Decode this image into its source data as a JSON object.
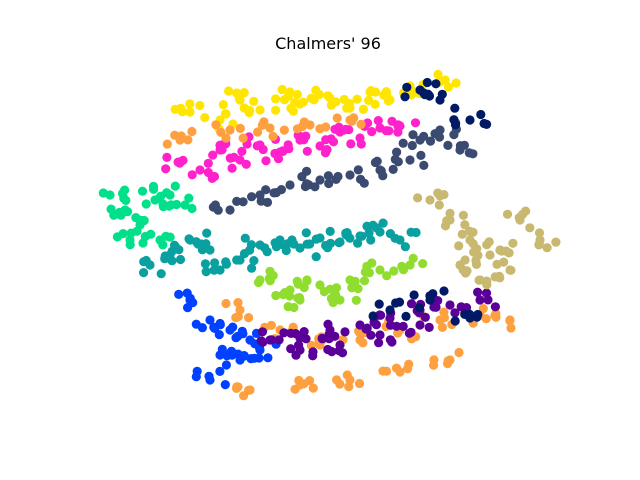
{
  "chart_data": {
    "type": "scatter",
    "title": "Chalmers' 96",
    "axes_visible": false,
    "grid": false,
    "legend": "none",
    "colors": {
      "pink_band": "#ff22cc",
      "yellow_band": "#ffe600",
      "orange_band": "#ffa040",
      "cyan_green": "#00e08a",
      "teal": "#0aa0a0",
      "blue": "#0040ff",
      "purple_band": "#5a0099",
      "slate": "#3a4a70",
      "khaki": "#c8b870",
      "lime": "#90dd30",
      "navy": "#001a66"
    },
    "series": [
      {
        "values": [
          [
            180,
            162
          ],
          [
            220,
            150
          ],
          [
            260,
            145
          ],
          [
            300,
            140
          ],
          [
            340,
            132
          ],
          [
            380,
            128
          ],
          [
            400,
            126
          ],
          [
            200,
            170
          ],
          [
            240,
            160
          ],
          [
            280,
            152
          ],
          [
            320,
            146
          ],
          [
            360,
            138
          ]
        ]
      },
      {
        "values": [
          [
            190,
            112
          ],
          [
            240,
            100
          ],
          [
            290,
            92
          ],
          [
            330,
            98
          ],
          [
            370,
            92
          ],
          [
            410,
            86
          ],
          [
            440,
            82
          ],
          [
            220,
            120
          ],
          [
            260,
            110
          ],
          [
            300,
            104
          ],
          [
            350,
            108
          ],
          [
            390,
            100
          ]
        ]
      },
      {
        "values": [
          [
            180,
            140
          ],
          [
            230,
            130
          ],
          [
            270,
            128
          ],
          [
            310,
            125
          ],
          [
            350,
            120
          ],
          [
            240,
            310
          ],
          [
            280,
            330
          ],
          [
            320,
            345
          ],
          [
            360,
            340
          ],
          [
            400,
            330
          ],
          [
            440,
            320
          ],
          [
            480,
            315
          ],
          [
            510,
            320
          ],
          [
            250,
            390
          ],
          [
            300,
            385
          ],
          [
            350,
            380
          ],
          [
            400,
            372
          ],
          [
            450,
            360
          ]
        ]
      },
      {
        "values": [
          [
            110,
            195
          ],
          [
            125,
            210
          ],
          [
            140,
            225
          ],
          [
            155,
            200
          ],
          [
            170,
            195
          ],
          [
            185,
            205
          ],
          [
            130,
            240
          ],
          [
            160,
            240
          ]
        ]
      },
      {
        "values": [
          [
            150,
            265
          ],
          [
            170,
            255
          ],
          [
            190,
            240
          ],
          [
            210,
            250
          ],
          [
            220,
            270
          ],
          [
            240,
            260
          ],
          [
            260,
            245
          ],
          [
            280,
            240
          ],
          [
            300,
            248
          ],
          [
            320,
            238
          ],
          [
            340,
            242
          ],
          [
            360,
            236
          ],
          [
            380,
            232
          ],
          [
            400,
            240
          ]
        ]
      },
      {
        "values": [
          [
            190,
            300
          ],
          [
            210,
            320
          ],
          [
            230,
            330
          ],
          [
            250,
            340
          ],
          [
            220,
            355
          ],
          [
            240,
            360
          ],
          [
            260,
            350
          ],
          [
            210,
            380
          ]
        ]
      },
      {
        "values": [
          [
            270,
            340
          ],
          [
            300,
            338
          ],
          [
            330,
            330
          ],
          [
            360,
            325
          ],
          [
            390,
            318
          ],
          [
            420,
            310
          ],
          [
            450,
            305
          ],
          [
            480,
            300
          ],
          [
            300,
            350
          ],
          [
            340,
            345
          ],
          [
            380,
            335
          ],
          [
            420,
            325
          ]
        ]
      },
      {
        "values": [
          [
            230,
            210
          ],
          [
            260,
            195
          ],
          [
            290,
            185
          ],
          [
            320,
            180
          ],
          [
            350,
            175
          ],
          [
            380,
            170
          ],
          [
            410,
            160
          ],
          [
            420,
            140
          ],
          [
            440,
            130
          ],
          [
            460,
            150
          ]
        ]
      },
      {
        "values": [
          [
            430,
            200
          ],
          [
            450,
            220
          ],
          [
            470,
            240
          ],
          [
            490,
            255
          ],
          [
            510,
            270
          ],
          [
            460,
            265
          ],
          [
            480,
            280
          ],
          [
            500,
            250
          ],
          [
            520,
            220
          ],
          [
            540,
            240
          ]
        ]
      },
      {
        "values": [
          [
            260,
            280
          ],
          [
            290,
            290
          ],
          [
            320,
            285
          ],
          [
            350,
            280
          ],
          [
            380,
            270
          ],
          [
            410,
            265
          ],
          [
            300,
            300
          ],
          [
            340,
            300
          ]
        ]
      },
      {
        "values": [
          [
            420,
            90
          ],
          [
            440,
            100
          ],
          [
            470,
            120
          ],
          [
            390,
            310
          ],
          [
            430,
            300
          ],
          [
            470,
            318
          ]
        ]
      }
    ]
  }
}
